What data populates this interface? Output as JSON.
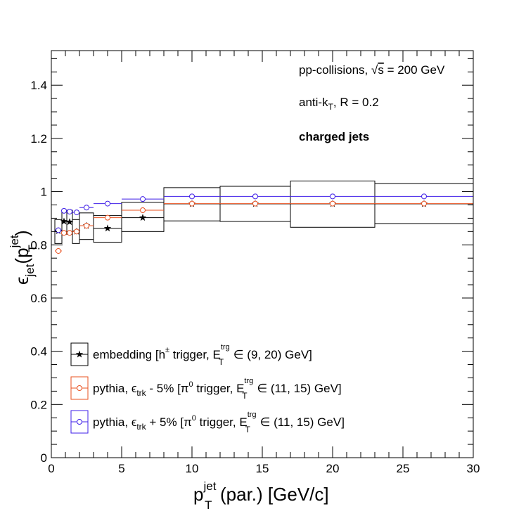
{
  "chart_data": {
    "type": "scatter",
    "title": "",
    "xlim": [
      0,
      30
    ],
    "ylim": [
      0,
      1.53
    ],
    "x_ticks": [
      "0",
      "5",
      "10",
      "15",
      "20",
      "25",
      "30"
    ],
    "y_ticks": [
      "0",
      "0.2",
      "0.4",
      "0.6",
      "0.8",
      "1",
      "1.2",
      "1.4"
    ],
    "xlabel": {
      "main": "p",
      "sup": "jet",
      "sub": "T",
      "rest": "(par.) [GeV/c]"
    },
    "ylabel": {
      "eps": "ϵ",
      "jet_sub": "jet",
      "open": "(p",
      "sup": "jet",
      "sub": "T",
      "close": ")"
    },
    "annotations": {
      "collisions_prefix": "pp-collisions, ",
      "sqrt_symbol": "√",
      "s_symbol": "s",
      "collisions_suffix": " = 200 GeV",
      "algo_prefix": "anti-k",
      "algo_sub": "T",
      "algo_suffix": ", R = 0.2",
      "jets_label": "charged jets"
    },
    "series": [
      {
        "key": "embedding",
        "color": "#000000",
        "marker": "star",
        "legend": {
          "a": "embedding [h",
          "a_sup": "±",
          "b": " trigger, E",
          "b_sup": "trg",
          "b_sub": "T",
          "c": " ∈ (9, 20) GeV]"
        },
        "points": [
          {
            "x": 0.5,
            "y": 0.852,
            "xlo": 0.25,
            "xhi": 0.75,
            "ylo": 0.805,
            "yhi": 0.895
          },
          {
            "x": 0.9,
            "y": 0.888,
            "xlo": 0.75,
            "xhi": 1.1,
            "ylo": 0.84,
            "yhi": 0.93
          },
          {
            "x": 1.3,
            "y": 0.886,
            "xlo": 1.1,
            "xhi": 1.5,
            "ylo": 0.84,
            "yhi": 0.93
          },
          {
            "x": 1.8,
            "y": 0.85,
            "xlo": 1.5,
            "xhi": 2.0,
            "ylo": 0.805,
            "yhi": 0.895
          },
          {
            "x": 2.5,
            "y": 0.872,
            "xlo": 2.0,
            "xhi": 3.0,
            "ylo": 0.82,
            "yhi": 0.92
          },
          {
            "x": 4.0,
            "y": 0.862,
            "xlo": 3.0,
            "xhi": 5.0,
            "ylo": 0.81,
            "yhi": 0.91
          },
          {
            "x": 6.5,
            "y": 0.902,
            "xlo": 5.0,
            "xhi": 8.0,
            "ylo": 0.85,
            "yhi": 0.96
          },
          {
            "x": 10.0,
            "y": 0.954,
            "xlo": 8.0,
            "xhi": 12.0,
            "ylo": 0.89,
            "yhi": 1.015
          },
          {
            "x": 14.5,
            "y": 0.954,
            "xlo": 12.0,
            "xhi": 17.0,
            "ylo": 0.888,
            "yhi": 1.02
          },
          {
            "x": 20.0,
            "y": 0.954,
            "xlo": 17.0,
            "xhi": 23.0,
            "ylo": 0.866,
            "yhi": 1.04
          },
          {
            "x": 26.5,
            "y": 0.954,
            "xlo": 23.0,
            "xhi": 30.0,
            "ylo": 0.88,
            "yhi": 1.03
          }
        ]
      },
      {
        "key": "pythia_minus",
        "color": "#e8501f",
        "marker": "circle",
        "legend": {
          "a": "pythia, ",
          "eps": "ϵ",
          "eps_sub": "trk",
          "b": " - 5% [π",
          "b_sup": "0",
          "c": " trigger, E",
          "c_sup": "trg",
          "c_sub": "T",
          "d": " ∈ (11, 15) GeV]"
        },
        "points": [
          {
            "x": 0.5,
            "y": 0.777,
            "xlo": 0.25,
            "xhi": 0.75
          },
          {
            "x": 0.9,
            "y": 0.845,
            "xlo": 0.75,
            "xhi": 1.1
          },
          {
            "x": 1.3,
            "y": 0.845,
            "xlo": 1.1,
            "xhi": 1.5
          },
          {
            "x": 1.8,
            "y": 0.85,
            "xlo": 1.5,
            "xhi": 2.0
          },
          {
            "x": 2.5,
            "y": 0.872,
            "xlo": 2.0,
            "xhi": 3.0
          },
          {
            "x": 4.0,
            "y": 0.902,
            "xlo": 3.0,
            "xhi": 5.0
          },
          {
            "x": 6.5,
            "y": 0.93,
            "xlo": 5.0,
            "xhi": 8.0
          },
          {
            "x": 10.0,
            "y": 0.955,
            "xlo": 8.0,
            "xhi": 12.0
          },
          {
            "x": 14.5,
            "y": 0.955,
            "xlo": 12.0,
            "xhi": 17.0
          },
          {
            "x": 20.0,
            "y": 0.955,
            "xlo": 17.0,
            "xhi": 23.0
          },
          {
            "x": 26.5,
            "y": 0.955,
            "xlo": 23.0,
            "xhi": 30.0
          }
        ]
      },
      {
        "key": "pythia_plus",
        "color": "#3f1fe8",
        "marker": "circle",
        "legend": {
          "a": "pythia, ",
          "eps": "ϵ",
          "eps_sub": "trk",
          "b": " + 5% [π",
          "b_sup": "0",
          "c": " trigger, E",
          "c_sup": "trg",
          "c_sub": "T",
          "d": " ∈ (11, 15) GeV]"
        },
        "points": [
          {
            "x": 0.5,
            "y": 0.855,
            "xlo": 0.25,
            "xhi": 0.75
          },
          {
            "x": 0.9,
            "y": 0.928,
            "xlo": 0.75,
            "xhi": 1.1
          },
          {
            "x": 1.3,
            "y": 0.925,
            "xlo": 1.1,
            "xhi": 1.5
          },
          {
            "x": 1.8,
            "y": 0.922,
            "xlo": 1.5,
            "xhi": 2.0
          },
          {
            "x": 2.5,
            "y": 0.94,
            "xlo": 2.0,
            "xhi": 3.0
          },
          {
            "x": 4.0,
            "y": 0.955,
            "xlo": 3.0,
            "xhi": 5.0
          },
          {
            "x": 6.5,
            "y": 0.972,
            "xlo": 5.0,
            "xhi": 8.0
          },
          {
            "x": 10.0,
            "y": 0.982,
            "xlo": 8.0,
            "xhi": 12.0
          },
          {
            "x": 14.5,
            "y": 0.982,
            "xlo": 12.0,
            "xhi": 17.0
          },
          {
            "x": 20.0,
            "y": 0.982,
            "xlo": 17.0,
            "xhi": 23.0
          },
          {
            "x": 26.5,
            "y": 0.982,
            "xlo": 23.0,
            "xhi": 30.0
          }
        ]
      }
    ],
    "legend_placement": "bottom-left",
    "grid": false
  }
}
